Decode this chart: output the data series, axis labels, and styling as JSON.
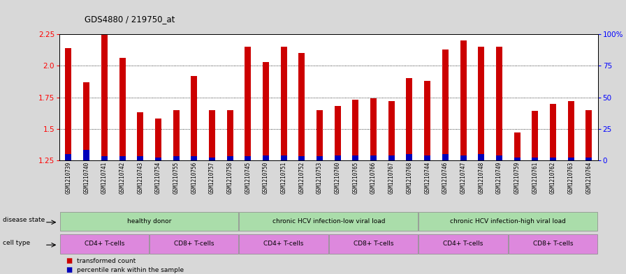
{
  "title": "GDS4880 / 219750_at",
  "samples": [
    "GSM1210739",
    "GSM1210740",
    "GSM1210741",
    "GSM1210742",
    "GSM1210743",
    "GSM1210754",
    "GSM1210755",
    "GSM1210756",
    "GSM1210757",
    "GSM1210758",
    "GSM1210745",
    "GSM1210750",
    "GSM1210751",
    "GSM1210752",
    "GSM1210753",
    "GSM1210760",
    "GSM1210765",
    "GSM1210766",
    "GSM1210767",
    "GSM1210768",
    "GSM1210744",
    "GSM1210746",
    "GSM1210747",
    "GSM1210748",
    "GSM1210749",
    "GSM1210759",
    "GSM1210761",
    "GSM1210762",
    "GSM1210763",
    "GSM1210764"
  ],
  "transformed_count": [
    2.14,
    1.87,
    2.25,
    2.06,
    1.63,
    1.58,
    1.65,
    1.92,
    1.65,
    1.65,
    2.15,
    2.03,
    2.15,
    2.1,
    1.65,
    1.68,
    1.73,
    1.74,
    1.72,
    1.9,
    1.88,
    2.13,
    2.2,
    2.15,
    2.15,
    1.47,
    1.64,
    1.7,
    1.72,
    1.65
  ],
  "percentile_rank": [
    5,
    8,
    3,
    3,
    3,
    2,
    3,
    3,
    2,
    3,
    3,
    4,
    4,
    3,
    3,
    4,
    4,
    4,
    4,
    5,
    4,
    5,
    4,
    5,
    4,
    2,
    2,
    2,
    2,
    2
  ],
  "y_min": 1.25,
  "y_max": 2.25,
  "y_ticks": [
    1.25,
    1.5,
    1.75,
    2.0,
    2.25
  ],
  "right_y_ticks": [
    0,
    25,
    50,
    75,
    100
  ],
  "right_y_labels": [
    "0",
    "25",
    "50",
    "75",
    "100%"
  ],
  "bar_color": "#cc0000",
  "percentile_color": "#0000bb",
  "plot_bg": "#ffffff",
  "fig_bg": "#d8d8d8",
  "ds_color": "#aaddaa",
  "ct_color": "#dd88dd",
  "ds_groups": [
    {
      "label": "healthy donor",
      "start": 0,
      "end": 9
    },
    {
      "label": "chronic HCV infection-low viral load",
      "start": 10,
      "end": 19
    },
    {
      "label": "chronic HCV infection-high viral load",
      "start": 20,
      "end": 29
    }
  ],
  "ct_groups": [
    {
      "label": "CD4+ T-cells",
      "start": 0,
      "end": 4
    },
    {
      "label": "CD8+ T-cells",
      "start": 5,
      "end": 9
    },
    {
      "label": "CD4+ T-cells",
      "start": 10,
      "end": 14
    },
    {
      "label": "CD8+ T-cells",
      "start": 15,
      "end": 19
    },
    {
      "label": "CD4+ T-cells",
      "start": 20,
      "end": 24
    },
    {
      "label": "CD8+ T-cells",
      "start": 25,
      "end": 29
    }
  ]
}
